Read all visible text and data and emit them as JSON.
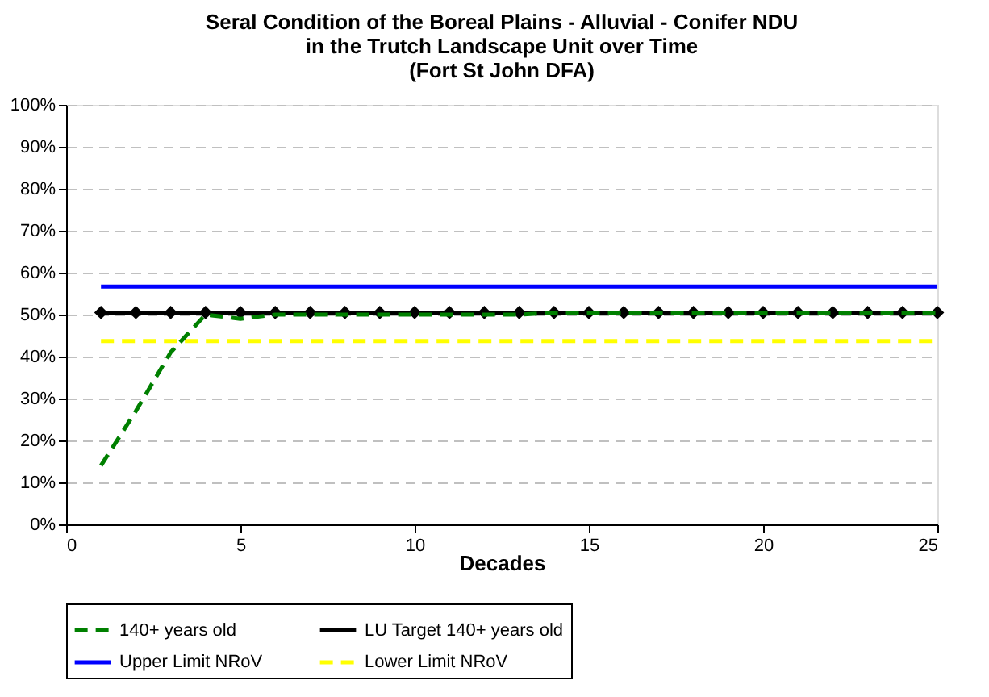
{
  "chart_data": {
    "type": "line",
    "title": "Seral Condition of the Boreal Plains - Alluvial - Conifer NDU\nin the Trutch Landscape Unit over Time\n(Fort St John DFA)",
    "xlabel": "Decades",
    "x": [
      1,
      2,
      3,
      4,
      5,
      6,
      7,
      8,
      9,
      10,
      11,
      12,
      13,
      14,
      15,
      16,
      17,
      18,
      19,
      20,
      21,
      22,
      23,
      24,
      25
    ],
    "series": [
      {
        "name": "140+ years old",
        "color": "#008000",
        "line_style": "dashed",
        "marker": "none",
        "values": [
          14,
          27,
          41,
          50,
          49,
          50,
          50,
          50,
          50,
          50,
          50,
          50,
          50,
          50.5,
          50.5,
          50.5,
          50.5,
          50.5,
          50.5,
          50.5,
          50.5,
          50.5,
          50.5,
          50.5,
          50.5
        ]
      },
      {
        "name": "LU Target 140+ years old",
        "color": "#000000",
        "line_style": "solid",
        "marker": "diamond",
        "values": [
          50.5,
          50.5,
          50.5,
          50.5,
          50.5,
          50.5,
          50.5,
          50.5,
          50.5,
          50.5,
          50.5,
          50.5,
          50.5,
          50.5,
          50.5,
          50.5,
          50.5,
          50.5,
          50.5,
          50.5,
          50.5,
          50.5,
          50.5,
          50.5,
          50.5
        ]
      },
      {
        "name": "Upper Limit NRoV",
        "color": "#0000ff",
        "line_style": "solid",
        "marker": "none",
        "values": [
          56.7,
          56.7,
          56.7,
          56.7,
          56.7,
          56.7,
          56.7,
          56.7,
          56.7,
          56.7,
          56.7,
          56.7,
          56.7,
          56.7,
          56.7,
          56.7,
          56.7,
          56.7,
          56.7,
          56.7,
          56.7,
          56.7,
          56.7,
          56.7,
          56.7
        ]
      },
      {
        "name": "Lower Limit NRoV",
        "color": "#ffff00",
        "line_style": "dashed",
        "marker": "none",
        "values": [
          43.7,
          43.7,
          43.7,
          43.7,
          43.7,
          43.7,
          43.7,
          43.7,
          43.7,
          43.7,
          43.7,
          43.7,
          43.7,
          43.7,
          43.7,
          43.7,
          43.7,
          43.7,
          43.7,
          43.7,
          43.7,
          43.7,
          43.7,
          43.7,
          43.7
        ]
      }
    ],
    "xlim": [
      0,
      25
    ],
    "xticks": [
      0,
      5,
      10,
      15,
      20,
      25
    ],
    "ylim": [
      0,
      100
    ],
    "yticks": [
      {
        "value": 0,
        "label": "0%"
      },
      {
        "value": 10,
        "label": "10%"
      },
      {
        "value": 20,
        "label": "20%"
      },
      {
        "value": 30,
        "label": "30%"
      },
      {
        "value": 40,
        "label": "40%"
      },
      {
        "value": 50,
        "label": "50%"
      },
      {
        "value": 60,
        "label": "60%"
      },
      {
        "value": 70,
        "label": "70%"
      },
      {
        "value": 80,
        "label": "80%"
      },
      {
        "value": 90,
        "label": "90%"
      },
      {
        "value": 100,
        "label": "100%"
      }
    ],
    "grid": "y",
    "legend": "bottom"
  }
}
